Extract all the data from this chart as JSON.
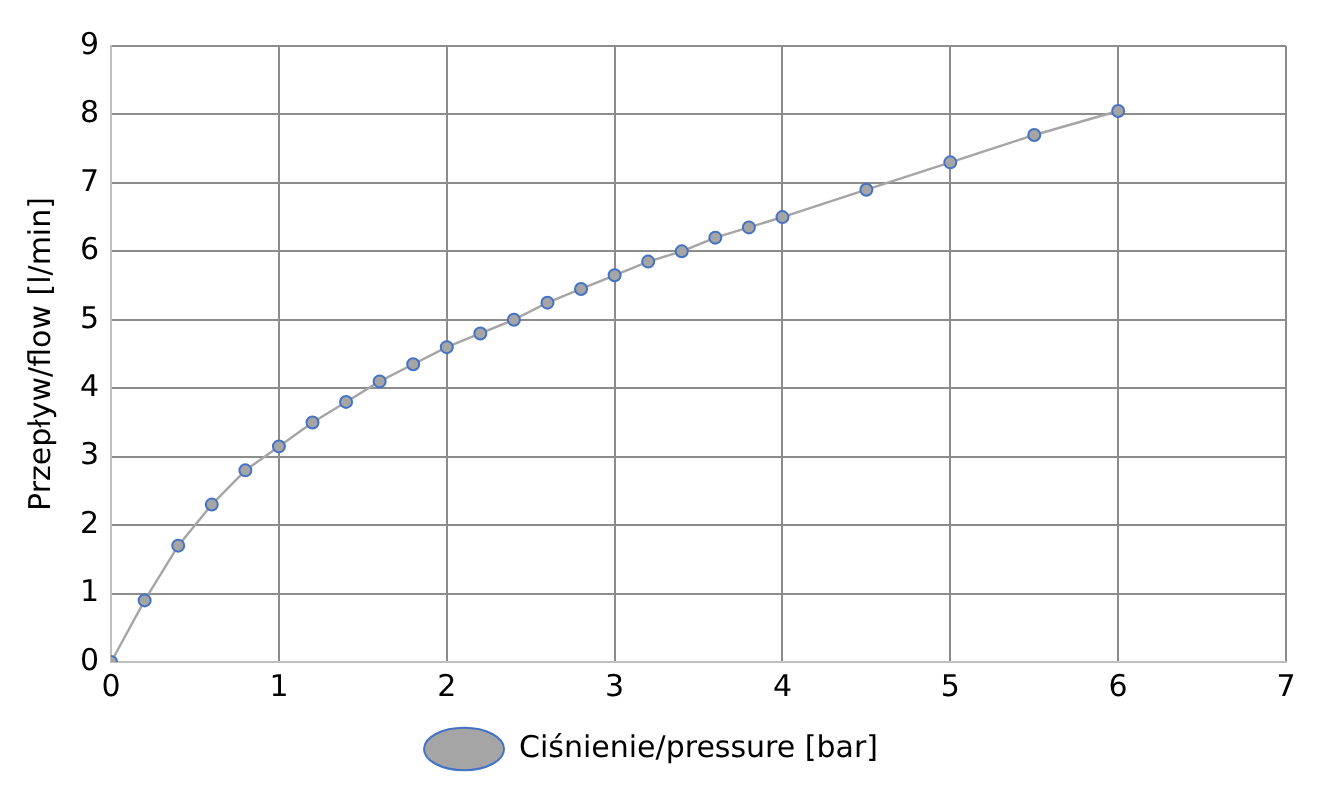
{
  "chart_data": {
    "type": "line",
    "ylabel": "Przepływ/flow [l/min]",
    "x": [
      0,
      0.2,
      0.4,
      0.6,
      0.8,
      1.0,
      1.2,
      1.4,
      1.6,
      1.8,
      2.0,
      2.2,
      2.4,
      2.6,
      2.8,
      3.0,
      3.2,
      3.4,
      3.6,
      3.8,
      4.0,
      4.5,
      5.0,
      5.5,
      6.0
    ],
    "series": [
      {
        "name": "Ciśnienie/pressure [bar]",
        "color": "#a5a5a5",
        "values": [
          0,
          0.9,
          1.7,
          2.3,
          2.8,
          3.15,
          3.5,
          3.8,
          4.1,
          4.35,
          4.6,
          4.8,
          5.0,
          5.25,
          5.45,
          5.65,
          5.85,
          6.0,
          6.2,
          6.35,
          6.5,
          6.9,
          7.3,
          7.7,
          8.05
        ]
      }
    ],
    "xlim": [
      0,
      7
    ],
    "xticks": [
      0,
      1,
      2,
      3,
      4,
      5,
      6,
      7
    ],
    "ylim": [
      0,
      9
    ],
    "yticks": [
      0,
      1,
      2,
      3,
      4,
      5,
      6,
      7,
      8,
      9
    ],
    "grid": true,
    "legend": "bottom",
    "marker": "circle",
    "line_style": "solid"
  }
}
